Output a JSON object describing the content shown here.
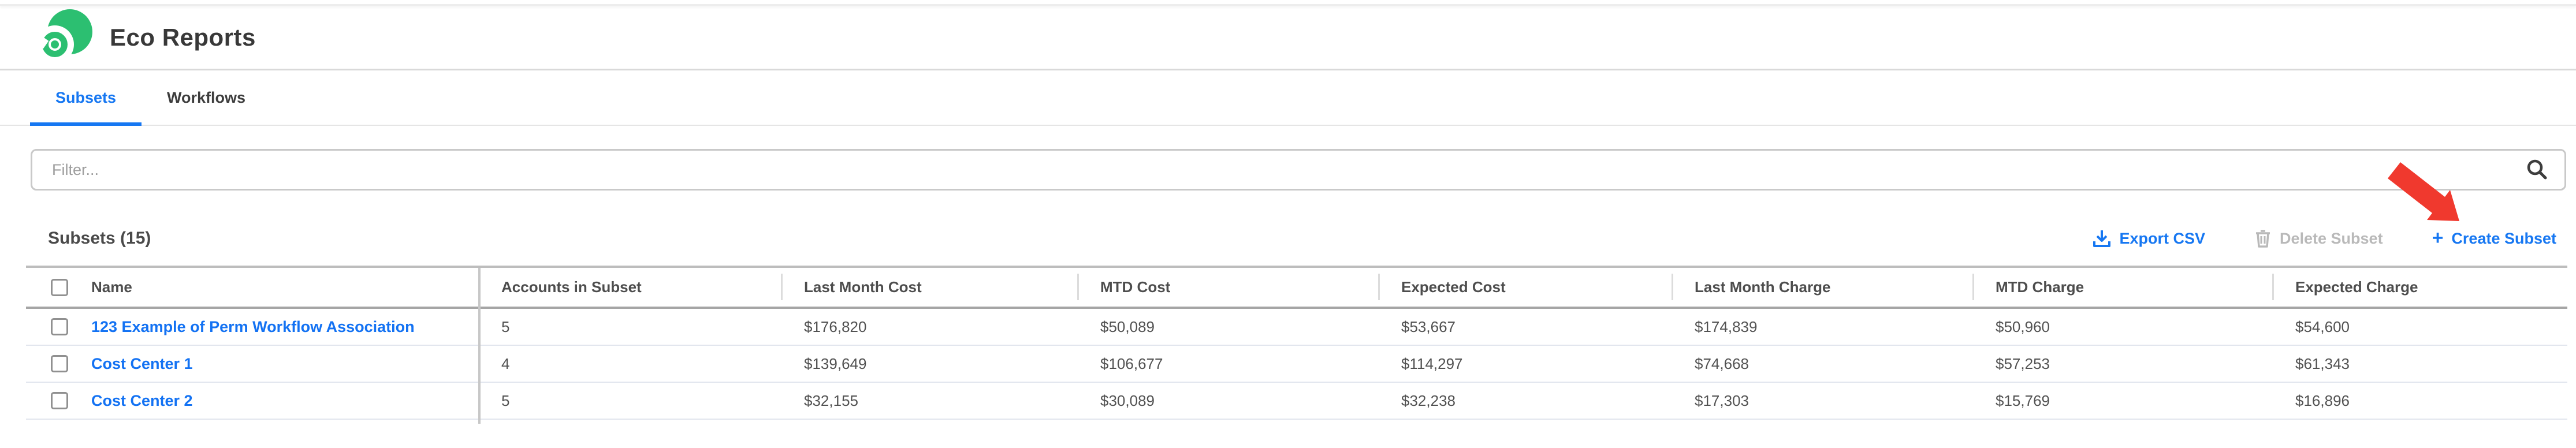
{
  "page": {
    "title": "Eco Reports"
  },
  "tabs": [
    {
      "label": "Subsets",
      "active": true
    },
    {
      "label": "Workflows",
      "active": false
    }
  ],
  "filter": {
    "placeholder": "Filter..."
  },
  "toolbar": {
    "heading": "Subsets (15)",
    "export_label": "Export CSV",
    "delete_label": "Delete Subset",
    "create_plus": "+",
    "create_label": "Create Subset"
  },
  "table": {
    "columns": [
      "Name",
      "Accounts in Subset",
      "Last Month Cost",
      "MTD Cost",
      "Expected Cost",
      "Last Month Charge",
      "MTD Charge",
      "Expected Charge"
    ],
    "field_order": [
      "name",
      "accounts",
      "last_month_cost",
      "mtd_cost",
      "expected_cost",
      "last_month_charge",
      "mtd_charge",
      "expected_charge"
    ],
    "rows": [
      {
        "name": "123 Example of Perm Workflow Association",
        "accounts": "5",
        "last_month_cost": "$176,820",
        "mtd_cost": "$50,089",
        "expected_cost": "$53,667",
        "last_month_charge": "$174,839",
        "mtd_charge": "$50,960",
        "expected_charge": "$54,600"
      },
      {
        "name": "Cost Center 1",
        "accounts": "4",
        "last_month_cost": "$139,649",
        "mtd_cost": "$106,677",
        "expected_cost": "$114,297",
        "last_month_charge": "$74,668",
        "mtd_charge": "$57,253",
        "expected_charge": "$61,343"
      },
      {
        "name": "Cost Center 2",
        "accounts": "5",
        "last_month_cost": "$32,155",
        "mtd_cost": "$30,089",
        "expected_cost": "$32,238",
        "last_month_charge": "$17,303",
        "mtd_charge": "$15,769",
        "expected_charge": "$16,896"
      }
    ]
  },
  "annotation": {
    "arrow_color": "#f0392e",
    "arrow_points_to": "Create Subset"
  },
  "colors": {
    "brand_green": "#2cbf71",
    "accent_blue": "#1677f2",
    "link_blue": "#1372f3",
    "disabled_gray": "#b9b9b9",
    "arrow_red": "#f0392e"
  }
}
